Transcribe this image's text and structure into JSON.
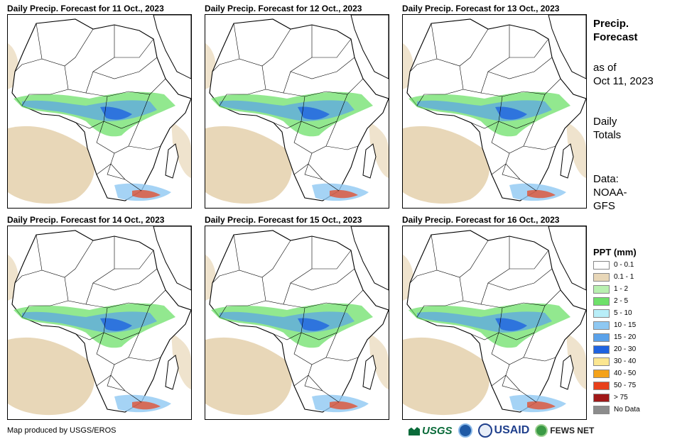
{
  "panels": [
    {
      "title": "Daily Precip. Forecast for 11 Oct., 2023"
    },
    {
      "title": "Daily Precip. Forecast for 12 Oct., 2023"
    },
    {
      "title": "Daily Precip. Forecast for 13 Oct., 2023"
    },
    {
      "title": "Daily Precip. Forecast for 14 Oct., 2023"
    },
    {
      "title": "Daily Precip. Forecast for 15 Oct., 2023"
    },
    {
      "title": "Daily Precip. Forecast for 16 Oct., 2023"
    }
  ],
  "side": {
    "title_line1": "Precip.",
    "title_line2": "Forecast",
    "asof_line1": "as of",
    "asof_line2": "Oct 11, 2023",
    "totals_line1": "Daily",
    "totals_line2": "Totals",
    "data_line1": "Data:",
    "data_line2": "NOAA-",
    "data_line3": "GFS"
  },
  "legend": {
    "title": "PPT (mm)",
    "items": [
      {
        "label": "0 - 0.1",
        "color": "#ffffff"
      },
      {
        "label": "0.1 - 1",
        "color": "#e8d7b8"
      },
      {
        "label": "1 - 2",
        "color": "#b8f0b0"
      },
      {
        "label": "2 - 5",
        "color": "#6ee06a"
      },
      {
        "label": "5 - 10",
        "color": "#b8eef8"
      },
      {
        "label": "10 - 15",
        "color": "#8ec8f2"
      },
      {
        "label": "15 - 20",
        "color": "#5aa2ea"
      },
      {
        "label": "20 - 30",
        "color": "#1f63e0"
      },
      {
        "label": "30 - 40",
        "color": "#fbe690"
      },
      {
        "label": "40 - 50",
        "color": "#f4a21a"
      },
      {
        "label": "50 - 75",
        "color": "#e8401a"
      },
      {
        "label": "> 75",
        "color": "#a01818"
      },
      {
        "label": "No Data",
        "color": "#8c8c8c"
      }
    ]
  },
  "footer": {
    "credit": "Map produced by USGS/EROS",
    "usgs": "USGS",
    "usaid": "USAID",
    "fews": "FEWS NET"
  }
}
